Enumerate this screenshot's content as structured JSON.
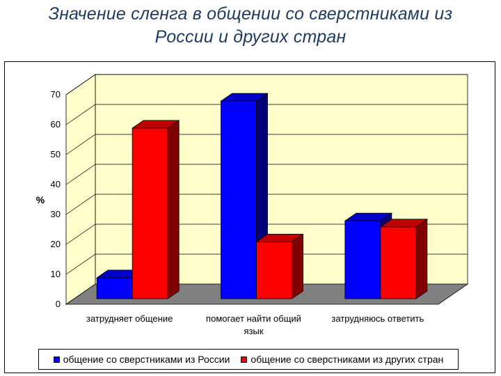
{
  "title_line1": "Значение сленга в общении со сверстниками из",
  "title_line2": "России и других стран",
  "chart_data": {
    "type": "bar",
    "title": "Значение сленга в общении со сверстниками из России и других стран",
    "ylabel": "%",
    "xlabel": "",
    "ylim": [
      0,
      70
    ],
    "yticks": [
      0,
      10,
      20,
      30,
      40,
      50,
      60,
      70
    ],
    "categories": [
      [
        "затрудняет общение"
      ],
      [
        "помогает найти общий",
        "язык"
      ],
      [
        "затрудняюсь ответить"
      ]
    ],
    "series": [
      {
        "name": "общение со сверстниками из России",
        "values": [
          7,
          66,
          26
        ],
        "color": "#0000ff",
        "side": "#00007a",
        "top": "#0000c8"
      },
      {
        "name": "общение со сверстниками из других стран",
        "values": [
          57,
          19,
          24
        ],
        "color": "#ff0000",
        "side": "#800000",
        "top": "#c00000"
      }
    ],
    "grid": true,
    "legend_position": "bottom",
    "style": "3d-clustered-column",
    "wall_color": "#ffffcc",
    "floor_color": "#808080"
  }
}
